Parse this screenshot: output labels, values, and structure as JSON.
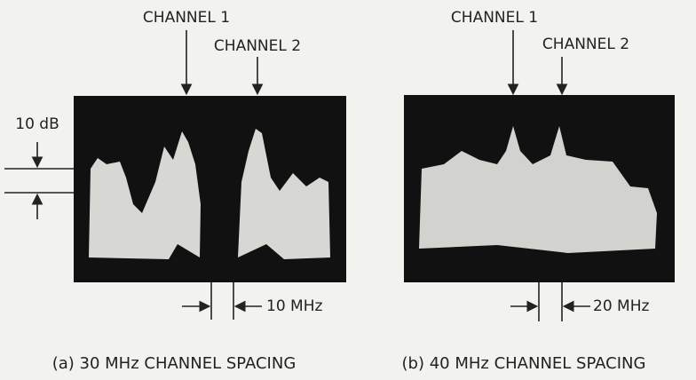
{
  "panels": [
    {
      "channel_1": "CHANNEL 1",
      "channel_2": "CHANNEL 2",
      "scale_label": "10 dB",
      "spacing_label": "10 MHz",
      "caption": "(a) 30 MHz CHANNEL SPACING"
    },
    {
      "channel_1": "CHANNEL 1",
      "channel_2": "CHANNEL 2",
      "spacing_label": "20 MHz",
      "caption": "(b) 40 MHz CHANNEL SPACING"
    }
  ]
}
